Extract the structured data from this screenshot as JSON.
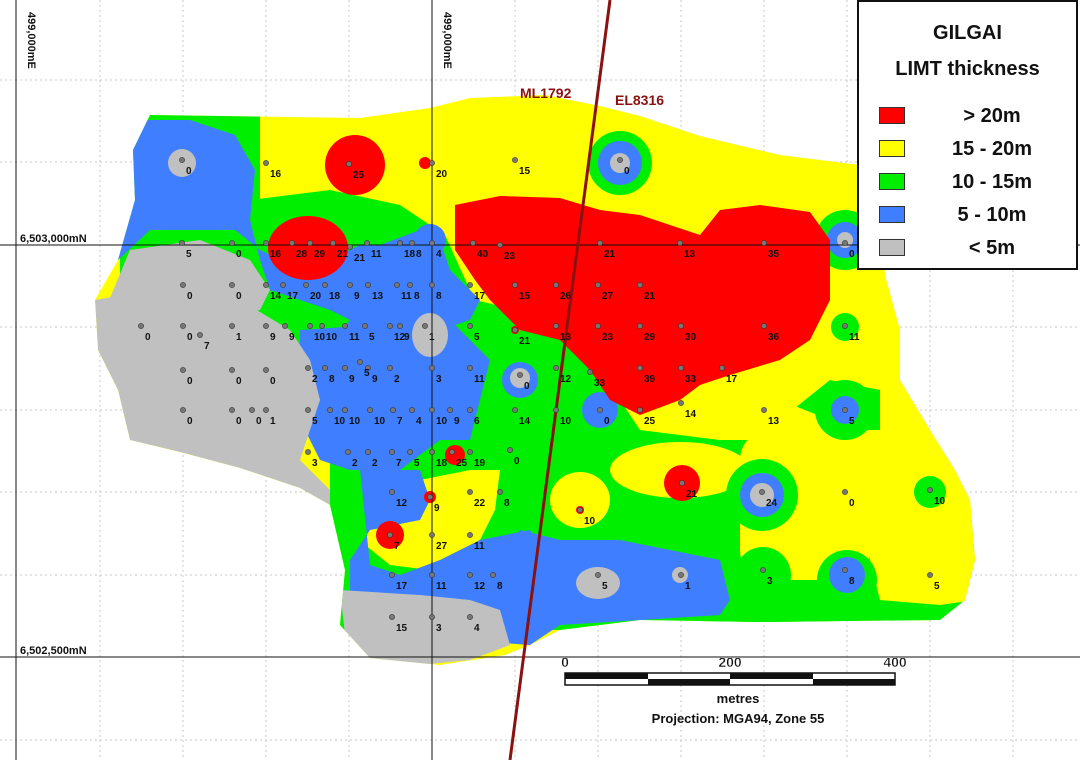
{
  "legend": {
    "title_line1": "GILGAI",
    "title_line2": "LIMT thickness",
    "classes": [
      {
        "label": "> 20m",
        "color": "#ff0000"
      },
      {
        "label": "15 - 20m",
        "color": "#ffff00"
      },
      {
        "label": "10 - 15m",
        "color": "#00ee00"
      },
      {
        "label": "5 - 10m",
        "color": "#3f7fff"
      },
      {
        "label": "< 5m",
        "color": "#c0c0c0"
      }
    ]
  },
  "grid_labels": {
    "easting_left": "499,000mE",
    "easting_mid": "499,000mE",
    "northing_upper": "6,503,000mN",
    "northing_lower": "6,502,500mN"
  },
  "boundary": {
    "color": "#8b1010",
    "label_left": "ML1792",
    "label_right": "EL8316"
  },
  "scalebar": {
    "ticks": [
      "0",
      "200",
      "400"
    ],
    "unit": "metres",
    "projection": "Projection:  MGA94, Zone 55"
  },
  "colors": {
    "background": "#ffffff",
    "grid": "#c8c8c8",
    "drillhole": "#777777"
  },
  "drillholes": [
    "0",
    "16",
    "25",
    "20",
    "15",
    "0",
    "5",
    "0",
    "16",
    "28",
    "29",
    "21",
    "21",
    "11",
    "18",
    "8",
    "4",
    "40",
    "23",
    "21",
    "13",
    "35",
    "0",
    "0",
    "0",
    "14",
    "17",
    "20",
    "18",
    "9",
    "13",
    "11",
    "8",
    "8",
    "17",
    "15",
    "26",
    "27",
    "21",
    "0",
    "0",
    "7",
    "1",
    "9",
    "9",
    "10",
    "10",
    "11",
    "5",
    "12",
    "9",
    "1",
    "5",
    "21",
    "13",
    "23",
    "29",
    "30",
    "36",
    "11",
    "0",
    "0",
    "0",
    "2",
    "8",
    "9",
    "9",
    "5",
    "2",
    "3",
    "11",
    "0",
    "12",
    "33",
    "39",
    "33",
    "17",
    "0",
    "0",
    "0",
    "1",
    "5",
    "10",
    "10",
    "10",
    "7",
    "4",
    "10",
    "9",
    "6",
    "14",
    "10",
    "0",
    "25",
    "14",
    "13",
    "5",
    "3",
    "2",
    "2",
    "7",
    "5",
    "18",
    "25",
    "19",
    "0",
    "12",
    "9",
    "22",
    "8",
    "10",
    "21",
    "24",
    "0",
    "10",
    "7",
    "27",
    "11",
    "17",
    "11",
    "12",
    "8",
    "5",
    "1",
    "3",
    "8",
    "5",
    "15",
    "3",
    "4",
    "1"
  ]
}
